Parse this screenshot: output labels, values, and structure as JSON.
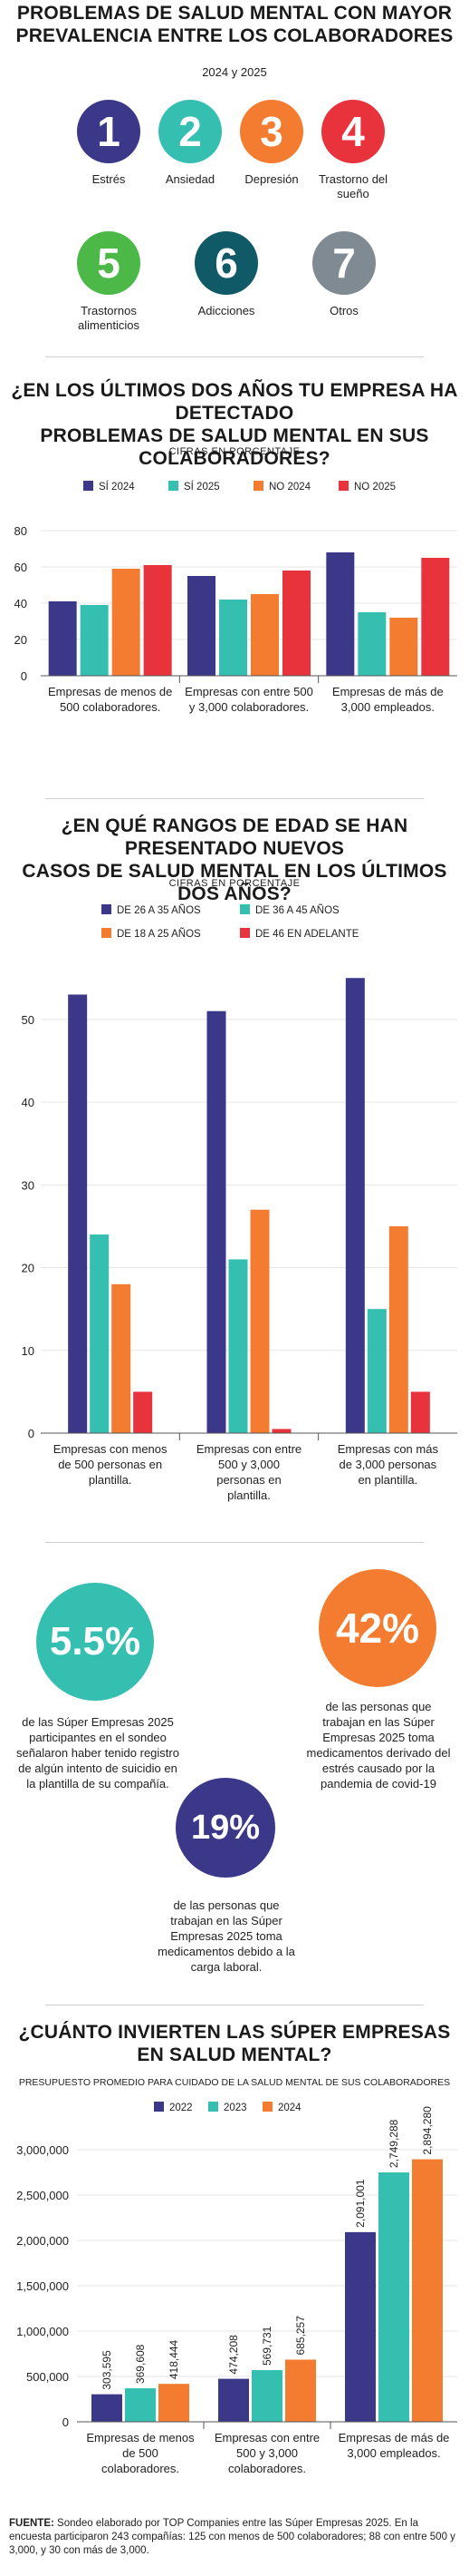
{
  "colors": {
    "purple": "#3b3889",
    "teal": "#35bfb1",
    "orange": "#f47c30",
    "red": "#e8323c",
    "green": "#4cb848",
    "darkteal": "#0f5a66",
    "gray": "#7f8a93"
  },
  "section1": {
    "title": [
      "Problemas de salud mental con mayor",
      "prevalencia entre los colaboradores"
    ],
    "subtitle": "2024 y 2025",
    "items": [
      {
        "number": "1",
        "label": "Estrés",
        "color": "#3b3889"
      },
      {
        "number": "2",
        "label": "Ansiedad",
        "color": "#35bfb1"
      },
      {
        "number": "3",
        "label": "Depresión",
        "color": "#f47c30"
      },
      {
        "number": "4",
        "label": "Trastorno del sueño",
        "color": "#e8323c"
      },
      {
        "number": "5",
        "label": "Trastornos alimenticios",
        "color": "#4cb848"
      },
      {
        "number": "6",
        "label": "Adicciones",
        "color": "#0f5a66"
      },
      {
        "number": "7",
        "label": "Otros",
        "color": "#7f8a93"
      }
    ]
  },
  "section2": {
    "title": [
      "¿En los últimos dos años tu empresa ha detectado",
      "problemas de salud mental en sus colaboradores?"
    ],
    "subtitle": "CIFRAS EN PORCENTAJE"
  },
  "section3": {
    "title": [
      "¿En qué rangos de edad se han presentado nuevos",
      "casos de salud mental en los últimos dos años?"
    ],
    "subtitle": "CIFRAS EN PORCENTAJE"
  },
  "section4": {
    "stat1": {
      "value": "5.5%",
      "text": "de las Súper Empresas 2025 participantes en el sondeo señalaron haber tenido registro de algún intento de suicidio en la plantilla de su compañía."
    },
    "stat2": {
      "value": "42%",
      "text": "de las personas que trabajan en las Súper Empresas 2025 toma medicamentos derivado del estrés causado por la pandemia de covid-19"
    },
    "stat3": {
      "value": "19%",
      "text": "de las personas que trabajan en las Súper Empresas 2025 toma medicamentos debido a la carga laboral."
    }
  },
  "section5": {
    "title": [
      "¿Cuánto invierten las Súper Empresas",
      "en salud mental?"
    ],
    "subtitle": "PRESUPUESTO PROMEDIO PARA CUIDADO DE LA SALUD MENTAL DE SUS COLABORADORES"
  },
  "footer": {
    "label": "FUENTE:",
    "text": "Sondeo elaborado por TOP Companies entre las Súper Empresas 2025. En la encuesta participaron 243 compañías: 125 con menos de 500 colaboradores; 88 con entre 500 y 3,000, y 30 con más de 3,000."
  },
  "chart_data": [
    {
      "type": "bar",
      "categories": [
        "Empresas de menos de 500 colaboradores.",
        "Empresas con entre 500 y 3,000 colaboradores.",
        "Empresas de más de 3,000 empleados."
      ],
      "series": [
        {
          "name": "SÍ 2024",
          "color": "#3b3889",
          "values": [
            41,
            55,
            68
          ]
        },
        {
          "name": "SÍ 2025",
          "color": "#35bfb1",
          "values": [
            39,
            42,
            35
          ]
        },
        {
          "name": "NO 2024",
          "color": "#f47c30",
          "values": [
            59,
            45,
            32
          ]
        },
        {
          "name": "NO 2025",
          "color": "#e8323c",
          "values": [
            61,
            58,
            65
          ]
        }
      ],
      "yticks": [
        0,
        20,
        40,
        60,
        80
      ],
      "ylim": [
        0,
        80
      ],
      "legend_position": "top"
    },
    {
      "type": "bar",
      "categories": [
        "Empresas con menos de 500 personas en plantilla.",
        "Empresas con entre 500 y 3,000 personas en plantilla.",
        "Empresas con más de 3,000 personas en plantilla."
      ],
      "series": [
        {
          "name": "DE 26 A 35 AÑOS",
          "color": "#3b3889",
          "values": [
            53,
            51,
            55
          ]
        },
        {
          "name": "DE 36 A 45 AÑOS",
          "color": "#35bfb1",
          "values": [
            24,
            21,
            15
          ]
        },
        {
          "name": "DE 18 A 25 AÑOS",
          "color": "#f47c30",
          "values": [
            18,
            27,
            25
          ]
        },
        {
          "name": "DE 46 EN ADELANTE",
          "color": "#e8323c",
          "values": [
            5,
            0.5,
            5
          ]
        }
      ],
      "yticks": [
        0,
        10,
        20,
        30,
        40,
        50
      ],
      "ylim": [
        0,
        57
      ],
      "legend_position": "top"
    },
    {
      "type": "bar",
      "categories": [
        "Empresas de menos de 500 colaboradores.",
        "Empresas con entre 500 y 3,000 colaboradores.",
        "Empresas de más de 3,000 empleados."
      ],
      "series": [
        {
          "name": "2022",
          "color": "#3b3889",
          "values": [
            303595,
            474208,
            2091001
          ],
          "labels": [
            "303,595",
            "474,208",
            "2,091,001"
          ]
        },
        {
          "name": "2023",
          "color": "#35bfb1",
          "values": [
            369608,
            569731,
            2749288
          ],
          "labels": [
            "369,608",
            "569,731",
            "2,749,288"
          ]
        },
        {
          "name": "2024",
          "color": "#f47c30",
          "values": [
            418444,
            685257,
            2894280
          ],
          "labels": [
            "418,444",
            "685,257",
            "2,894,280"
          ]
        }
      ],
      "yticks": [
        "0",
        "500,000",
        "1,000,000",
        "1,500,000",
        "2,000,000",
        "2,500,000",
        "3,000,000"
      ],
      "ylim": [
        0,
        3000000
      ],
      "legend_position": "top"
    }
  ]
}
